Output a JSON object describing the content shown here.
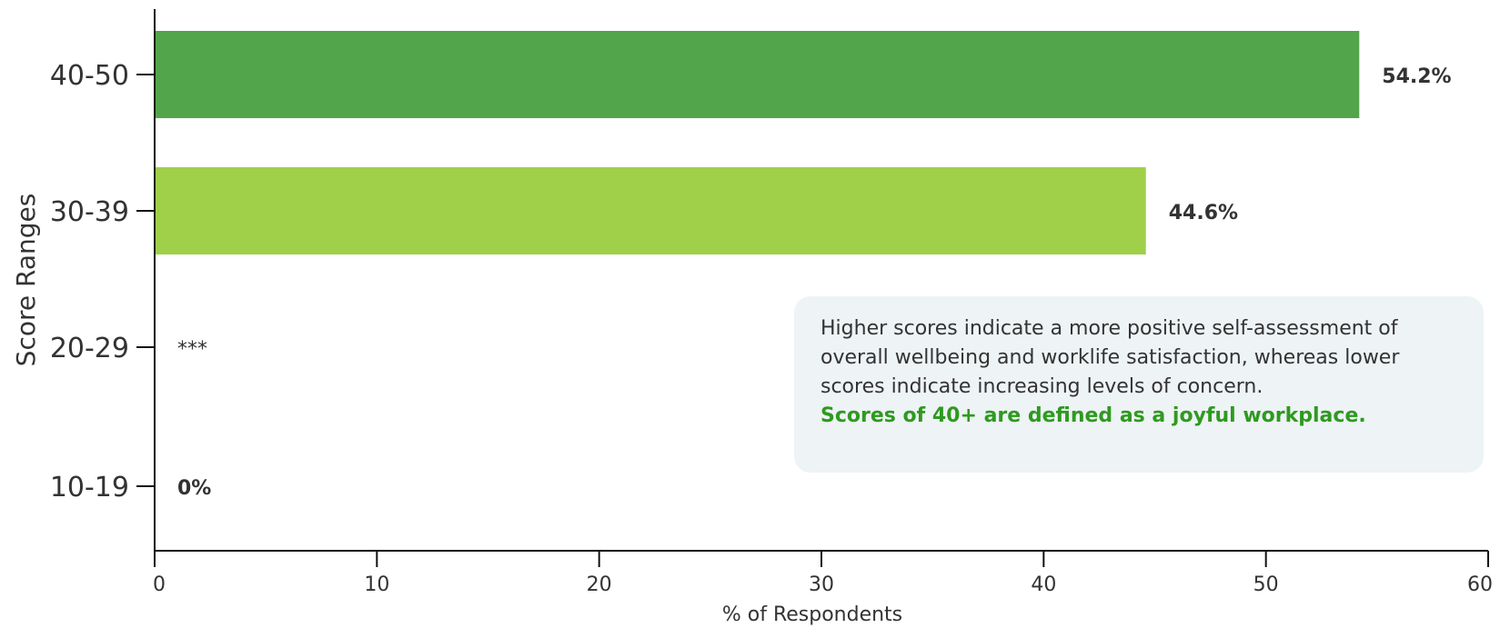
{
  "chart_data": {
    "type": "bar",
    "orientation": "horizontal",
    "categories": [
      "40-50",
      "30-39",
      "20-29",
      "10-19"
    ],
    "values": [
      54.2,
      44.6,
      null,
      0
    ],
    "data_labels": [
      "54.2%",
      "44.6%",
      "***",
      "0%"
    ],
    "bar_colors": [
      "#52a54b",
      "#a0cf4a",
      "#a0cf4a",
      "#a0cf4a"
    ],
    "xlabel": "% of Respondents",
    "ylabel": "Score Ranges",
    "xlim": [
      0,
      60
    ],
    "xticks": [
      0,
      10,
      20,
      30,
      40,
      50,
      60
    ],
    "grid": false,
    "legend": "none"
  },
  "note": {
    "lines": [
      "Higher scores indicate a more positive self-assessment of",
      "overall wellbeing and worklife satisfaction, whereas lower",
      "scores indicate increasing levels of concern."
    ],
    "highlight": "Scores of 40+ are defined as a joyful workplace.",
    "highlight_color": "#2e9a1f",
    "background_color": "#eef3f5"
  }
}
